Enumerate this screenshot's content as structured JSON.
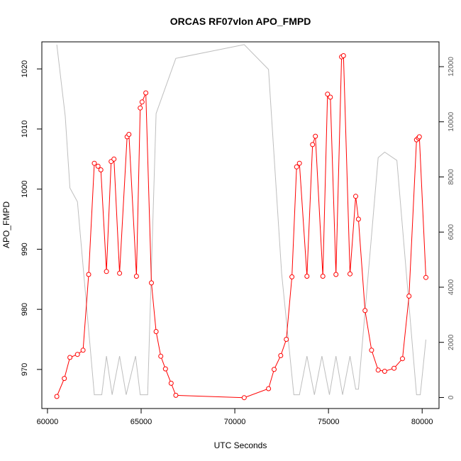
{
  "chart_data": {
    "type": "line",
    "title": "ORCAS RF07vlon APO_FMPD",
    "xlabel": "UTC Seconds",
    "ylabel": "APO_FMPD",
    "xlim": [
      59700,
      80900
    ],
    "ylim": [
      963.5,
      1024.5
    ],
    "y2lim": [
      -400,
      12900
    ],
    "x_ticks": [
      "60000",
      "65000",
      "70000",
      "75000",
      "80000"
    ],
    "y_ticks": [
      "970",
      "980",
      "990",
      "1000",
      "1010",
      "1020"
    ],
    "y2_ticks": [
      "0",
      "2000",
      "4000",
      "6000",
      "8000",
      "10000",
      "12000"
    ],
    "grid": false,
    "legend": "none",
    "colors": {
      "primary": "#ff0000",
      "secondary": "#bebebe",
      "axes": "#000000"
    },
    "series": [
      {
        "axis": "left",
        "style": "line-with-circles",
        "x": [
          60500,
          60900,
          61200,
          61600,
          61900,
          62200,
          62500,
          62700,
          62850,
          63150,
          63400,
          63550,
          63850,
          64250,
          64350,
          64750,
          64950,
          65050,
          65250,
          65550,
          65800,
          66050,
          66300,
          66600,
          66850,
          70500,
          71800,
          72100,
          72450,
          72750,
          73050,
          73300,
          73450,
          73850,
          74150,
          74300,
          74700,
          74950,
          75100,
          75400,
          75700,
          75800,
          76150,
          76450,
          76600,
          76950,
          77300,
          77650,
          78000,
          78500,
          78950,
          79300,
          79700,
          79800,
          79850,
          80200
        ],
        "values": [
          965.5,
          968.5,
          972.0,
          972.5,
          973.2,
          985.8,
          1004.3,
          1003.8,
          1003.2,
          986.3,
          1004.6,
          1005.0,
          986.0,
          1008.7,
          1009.1,
          985.5,
          1013.5,
          1014.5,
          1016.0,
          984.4,
          976.3,
          972.2,
          970.1,
          967.7,
          965.7,
          965.3,
          966.8,
          970.0,
          972.3,
          975.0,
          985.4,
          1003.7,
          1004.3,
          985.5,
          1007.4,
          1008.8,
          985.5,
          1015.8,
          1015.3,
          985.8,
          1022.0,
          1022.2,
          985.9,
          998.8,
          995.0,
          979.8,
          973.2,
          969.9,
          969.7,
          970.2,
          971.8,
          982.2,
          1008.2,
          1008.5,
          1008.7,
          985.3
        ]
      },
      {
        "axis": "right",
        "style": "line",
        "x": [
          60500,
          60950,
          61200,
          61600,
          62500,
          62900,
          63150,
          63450,
          63850,
          64200,
          64700,
          64950,
          65350,
          65800,
          66850,
          70500,
          71800,
          72500,
          73150,
          73450,
          73850,
          74250,
          74650,
          75050,
          75400,
          75750,
          76150,
          76450,
          76600,
          77650,
          78000,
          78650,
          79700,
          79900,
          80200
        ],
        "values": [
          12800,
          10200,
          7600,
          7100,
          100,
          100,
          1500,
          100,
          1500,
          100,
          1500,
          100,
          100,
          10300,
          12300,
          12800,
          11900,
          4500,
          100,
          100,
          1500,
          100,
          1500,
          100,
          1500,
          100,
          1500,
          300,
          300,
          8700,
          8900,
          8600,
          100,
          100,
          2100
        ]
      }
    ]
  }
}
